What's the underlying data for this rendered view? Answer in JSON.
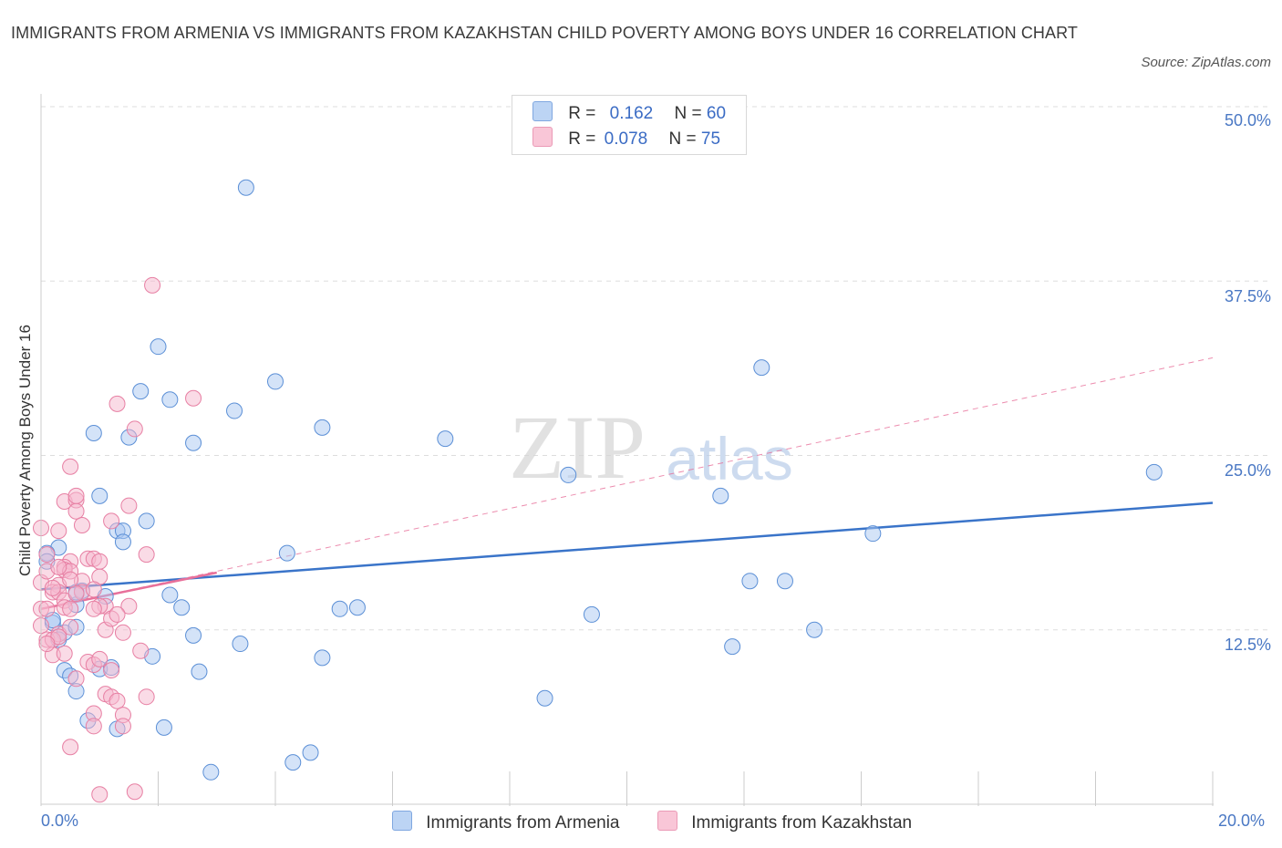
{
  "title": "IMMIGRANTS FROM ARMENIA VS IMMIGRANTS FROM KAZAKHSTAN CHILD POVERTY AMONG BOYS UNDER 16 CORRELATION CHART",
  "source": "Source: ZipAtlas.com",
  "watermark": {
    "zip": "ZIP",
    "atlas": "atlas"
  },
  "legend": {
    "armenia": {
      "r_label": "R =",
      "r_value": "0.162",
      "n_label": "N =",
      "n_value": "60"
    },
    "kazakhstan": {
      "r_label": "R =",
      "r_value": "0.078",
      "n_label": "N =",
      "n_value": "75"
    }
  },
  "colors": {
    "armenia_fill": "#a9c8f2",
    "armenia_stroke": "#5b8fd6",
    "armenia_line": "#3a74c9",
    "kazakhstan_fill": "#f6b8cd",
    "kazakhstan_stroke": "#e77fa3",
    "kazakhstan_line": "#e8709a",
    "grid": "#dddddd",
    "tick_text": "#4a78c4"
  },
  "chart_data": {
    "type": "scatter",
    "title": "IMMIGRANTS FROM ARMENIA VS IMMIGRANTS FROM KAZAKHSTAN CHILD POVERTY AMONG BOYS UNDER 16 CORRELATION CHART",
    "xlabel": "",
    "ylabel": "Child Poverty Among Boys Under 16",
    "xlim": [
      0,
      20
    ],
    "ylim": [
      0,
      50
    ],
    "x_tick_labels": [
      "0.0%",
      "20.0%"
    ],
    "y_ticks": [
      12.5,
      25.0,
      37.5,
      50.0
    ],
    "y_tick_labels": [
      "12.5%",
      "25.0%",
      "37.5%",
      "50.0%"
    ],
    "legend_position": "top-center",
    "series": [
      {
        "name": "Immigrants from Armenia",
        "points": [
          [
            3.5,
            44.2
          ],
          [
            2.0,
            32.8
          ],
          [
            4.0,
            30.3
          ],
          [
            1.7,
            29.6
          ],
          [
            2.2,
            29.0
          ],
          [
            3.3,
            28.2
          ],
          [
            0.9,
            26.6
          ],
          [
            1.5,
            26.3
          ],
          [
            2.6,
            25.9
          ],
          [
            4.8,
            27.0
          ],
          [
            6.9,
            26.2
          ],
          [
            9.0,
            23.6
          ],
          [
            11.6,
            22.1
          ],
          [
            12.3,
            31.3
          ],
          [
            19.0,
            23.8
          ],
          [
            14.2,
            19.4
          ],
          [
            1.0,
            22.1
          ],
          [
            1.3,
            19.6
          ],
          [
            1.4,
            19.6
          ],
          [
            1.8,
            20.3
          ],
          [
            1.4,
            18.8
          ],
          [
            0.3,
            18.4
          ],
          [
            0.1,
            18.0
          ],
          [
            4.2,
            18.0
          ],
          [
            0.7,
            15.3
          ],
          [
            0.6,
            14.3
          ],
          [
            1.1,
            14.9
          ],
          [
            2.2,
            15.0
          ],
          [
            2.4,
            14.1
          ],
          [
            5.1,
            14.0
          ],
          [
            5.4,
            14.1
          ],
          [
            9.4,
            13.6
          ],
          [
            12.1,
            16.0
          ],
          [
            12.7,
            16.0
          ],
          [
            0.2,
            13.0
          ],
          [
            0.4,
            12.3
          ],
          [
            0.6,
            12.7
          ],
          [
            2.6,
            12.1
          ],
          [
            3.4,
            11.5
          ],
          [
            4.8,
            10.5
          ],
          [
            1.9,
            10.6
          ],
          [
            2.7,
            9.5
          ],
          [
            0.4,
            9.6
          ],
          [
            0.5,
            9.2
          ],
          [
            1.0,
            9.7
          ],
          [
            1.2,
            9.8
          ],
          [
            0.6,
            8.1
          ],
          [
            0.8,
            6.0
          ],
          [
            1.3,
            5.4
          ],
          [
            2.1,
            5.5
          ],
          [
            8.6,
            7.6
          ],
          [
            11.8,
            11.3
          ],
          [
            13.2,
            12.5
          ],
          [
            4.6,
            3.7
          ],
          [
            4.3,
            3.0
          ],
          [
            2.9,
            2.3
          ],
          [
            0.3,
            11.8
          ],
          [
            0.2,
            13.2
          ],
          [
            0.6,
            15.2
          ],
          [
            0.1,
            17.4
          ]
        ]
      },
      {
        "name": "Immigrants from Kazakhstan",
        "points": [
          [
            1.9,
            37.2
          ],
          [
            2.6,
            29.1
          ],
          [
            1.3,
            28.7
          ],
          [
            1.6,
            26.9
          ],
          [
            0.5,
            24.2
          ],
          [
            0.4,
            21.7
          ],
          [
            0.6,
            21.8
          ],
          [
            0.6,
            22.1
          ],
          [
            0.6,
            21.0
          ],
          [
            1.5,
            21.4
          ],
          [
            0.0,
            19.8
          ],
          [
            0.3,
            19.6
          ],
          [
            0.7,
            20.0
          ],
          [
            1.2,
            20.3
          ],
          [
            0.1,
            17.9
          ],
          [
            0.5,
            17.4
          ],
          [
            0.8,
            17.6
          ],
          [
            0.9,
            17.6
          ],
          [
            1.0,
            17.4
          ],
          [
            1.8,
            17.9
          ],
          [
            0.4,
            17.0
          ],
          [
            0.4,
            16.8
          ],
          [
            0.5,
            16.7
          ],
          [
            0.0,
            15.9
          ],
          [
            0.3,
            15.7
          ],
          [
            0.7,
            16.0
          ],
          [
            1.0,
            16.3
          ],
          [
            0.0,
            14.0
          ],
          [
            0.2,
            15.2
          ],
          [
            0.3,
            15.2
          ],
          [
            0.4,
            14.6
          ],
          [
            0.7,
            15.2
          ],
          [
            0.9,
            15.4
          ],
          [
            1.1,
            14.2
          ],
          [
            1.0,
            14.2
          ],
          [
            0.1,
            14.0
          ],
          [
            0.4,
            14.1
          ],
          [
            0.5,
            14.0
          ],
          [
            0.9,
            14.0
          ],
          [
            1.5,
            14.2
          ],
          [
            0.0,
            12.8
          ],
          [
            0.3,
            12.2
          ],
          [
            0.5,
            12.7
          ],
          [
            1.1,
            12.5
          ],
          [
            1.4,
            12.3
          ],
          [
            1.2,
            13.3
          ],
          [
            1.3,
            13.6
          ],
          [
            0.1,
            11.8
          ],
          [
            0.2,
            11.8
          ],
          [
            0.3,
            12.0
          ],
          [
            0.2,
            10.7
          ],
          [
            0.4,
            10.8
          ],
          [
            0.8,
            10.2
          ],
          [
            0.9,
            10.0
          ],
          [
            1.0,
            10.4
          ],
          [
            1.2,
            9.6
          ],
          [
            0.6,
            9.0
          ],
          [
            1.7,
            11.0
          ],
          [
            0.1,
            11.5
          ],
          [
            1.1,
            7.9
          ],
          [
            1.2,
            7.7
          ],
          [
            1.3,
            7.4
          ],
          [
            1.8,
            7.7
          ],
          [
            0.9,
            6.5
          ],
          [
            1.4,
            6.4
          ],
          [
            0.9,
            5.6
          ],
          [
            1.4,
            5.6
          ],
          [
            0.5,
            4.1
          ],
          [
            1.0,
            0.7
          ],
          [
            1.6,
            0.9
          ],
          [
            0.1,
            16.7
          ],
          [
            0.6,
            15.1
          ],
          [
            0.3,
            17.0
          ],
          [
            0.5,
            16.1
          ],
          [
            0.2,
            15.5
          ]
        ]
      }
    ],
    "trend_lines": [
      {
        "series": "Immigrants from Armenia",
        "x": [
          0,
          20
        ],
        "y": [
          15.4,
          21.6
        ],
        "style": "solid"
      },
      {
        "series": "Immigrants from Kazakhstan",
        "x": [
          0,
          3.0
        ],
        "y": [
          14.0,
          16.6
        ],
        "style": "solid"
      },
      {
        "series": "Immigrants from Kazakhstan",
        "x": [
          0,
          20
        ],
        "y": [
          14.0,
          32.0
        ],
        "style": "dashed"
      }
    ]
  },
  "bottom_legend": [
    {
      "label": "Immigrants from Armenia"
    },
    {
      "label": "Immigrants from Kazakhstan"
    }
  ]
}
